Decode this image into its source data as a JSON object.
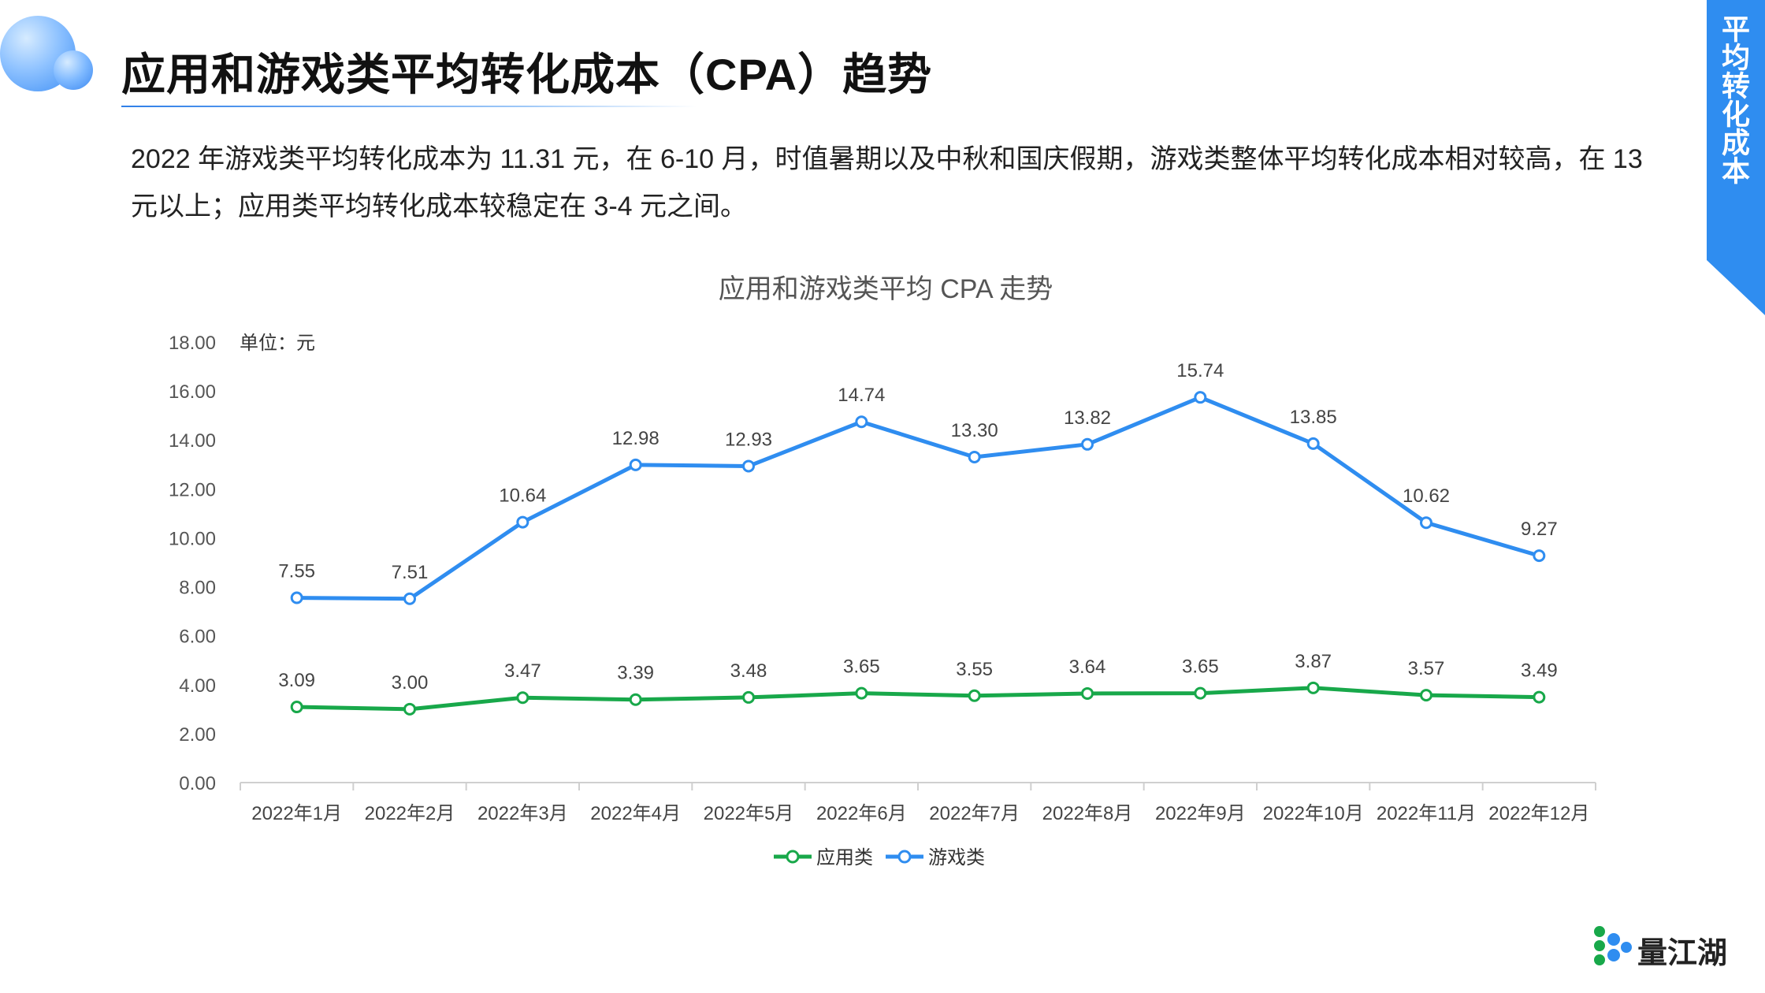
{
  "header": {
    "title": "应用和游戏类平均转化成本（CPA）趋势",
    "side_tab": "平均转化成本"
  },
  "intro_text": "2022 年游戏类平均转化成本为 11.31 元，在 6-10 月，时值暑期以及中秋和国庆假期，游戏类整体平均转化成本相对较高，在 13 元以上；应用类平均转化成本较稳定在 3-4 元之间。",
  "brand": {
    "name": "量江湖"
  },
  "colors": {
    "accent": "#2f7fe8",
    "app_series": "#18a84a",
    "game_series": "#2f8df0",
    "axis": "#555555"
  },
  "chart_data": {
    "type": "line",
    "title": "应用和游戏类平均 CPA 走势",
    "unit_label": "单位：元",
    "categories": [
      "2022年1月",
      "2022年2月",
      "2022年3月",
      "2022年4月",
      "2022年5月",
      "2022年6月",
      "2022年7月",
      "2022年8月",
      "2022年9月",
      "2022年10月",
      "2022年11月",
      "2022年12月"
    ],
    "ylim": [
      0,
      18
    ],
    "yticks": [
      "0.00",
      "2.00",
      "4.00",
      "6.00",
      "8.00",
      "10.00",
      "12.00",
      "14.00",
      "16.00",
      "18.00"
    ],
    "series": [
      {
        "name": "应用类",
        "color": "#18a84a",
        "values": [
          3.09,
          3.0,
          3.47,
          3.39,
          3.48,
          3.65,
          3.55,
          3.64,
          3.65,
          3.87,
          3.57,
          3.49
        ],
        "labels": [
          "3.09",
          "3.00",
          "3.47",
          "3.39",
          "3.48",
          "3.65",
          "3.55",
          "3.64",
          "3.65",
          "3.87",
          "3.57",
          "3.49"
        ]
      },
      {
        "name": "游戏类",
        "color": "#2f8df0",
        "values": [
          7.55,
          7.51,
          10.64,
          12.98,
          12.93,
          14.74,
          13.3,
          13.82,
          15.74,
          13.85,
          10.62,
          9.27
        ],
        "labels": [
          "7.55",
          "7.51",
          "10.64",
          "12.98",
          "12.93",
          "14.74",
          "13.30",
          "13.82",
          "15.74",
          "13.85",
          "10.62",
          "9.27"
        ]
      }
    ],
    "legend_position": "bottom",
    "grid": false
  }
}
